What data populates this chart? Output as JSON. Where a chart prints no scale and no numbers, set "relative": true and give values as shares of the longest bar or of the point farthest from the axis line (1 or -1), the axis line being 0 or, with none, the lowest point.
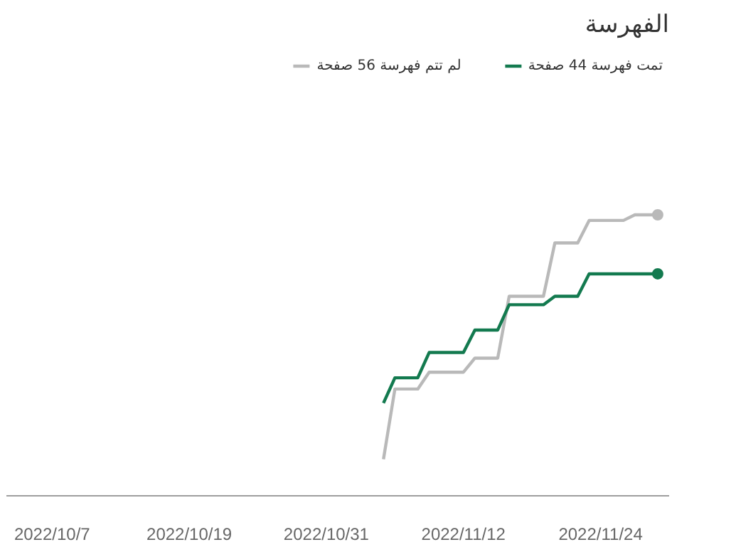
{
  "chart_data": {
    "type": "line",
    "title": "الفهرسة",
    "relative": true,
    "legend": "top right",
    "line_style": "solid",
    "xlim": [
      "2022-10-03",
      "2022-11-30"
    ],
    "xticks": [
      {
        "value": "2022-10-07",
        "label": "2022/10/7"
      },
      {
        "value": "2022-10-19",
        "label": "2022/10/19"
      },
      {
        "value": "2022-10-31",
        "label": "2022/10/31"
      },
      {
        "value": "2022-11-12",
        "label": "2022/11/12"
      },
      {
        "value": "2022-11-24",
        "label": "2022/11/24"
      }
    ],
    "series": [
      {
        "name": "لم تتم فهرسة 56 صفحة",
        "color": "#b9b9b9",
        "x": [
          "2022-11-05",
          "2022-11-06",
          "2022-11-08",
          "2022-11-09",
          "2022-11-12",
          "2022-11-13",
          "2022-11-15",
          "2022-11-16",
          "2022-11-19",
          "2022-11-20",
          "2022-11-22",
          "2022-11-23",
          "2022-11-26",
          "2022-11-27",
          "2022-11-29"
        ],
        "values": [
          0.13,
          0.38,
          0.38,
          0.44,
          0.44,
          0.49,
          0.49,
          0.71,
          0.71,
          0.9,
          0.9,
          0.98,
          0.98,
          1,
          1
        ]
      },
      {
        "name": "تمت فهرسة 44 صفحة",
        "color": "#137a4f",
        "x": [
          "2022-11-05",
          "2022-11-06",
          "2022-11-08",
          "2022-11-09",
          "2022-11-12",
          "2022-11-13",
          "2022-11-15",
          "2022-11-16",
          "2022-11-19",
          "2022-11-20",
          "2022-11-22",
          "2022-11-23",
          "2022-11-29"
        ],
        "values": [
          0.33,
          0.42,
          0.42,
          0.51,
          0.51,
          0.59,
          0.59,
          0.68,
          0.68,
          0.71,
          0.71,
          0.79,
          0.79
        ]
      }
    ]
  }
}
